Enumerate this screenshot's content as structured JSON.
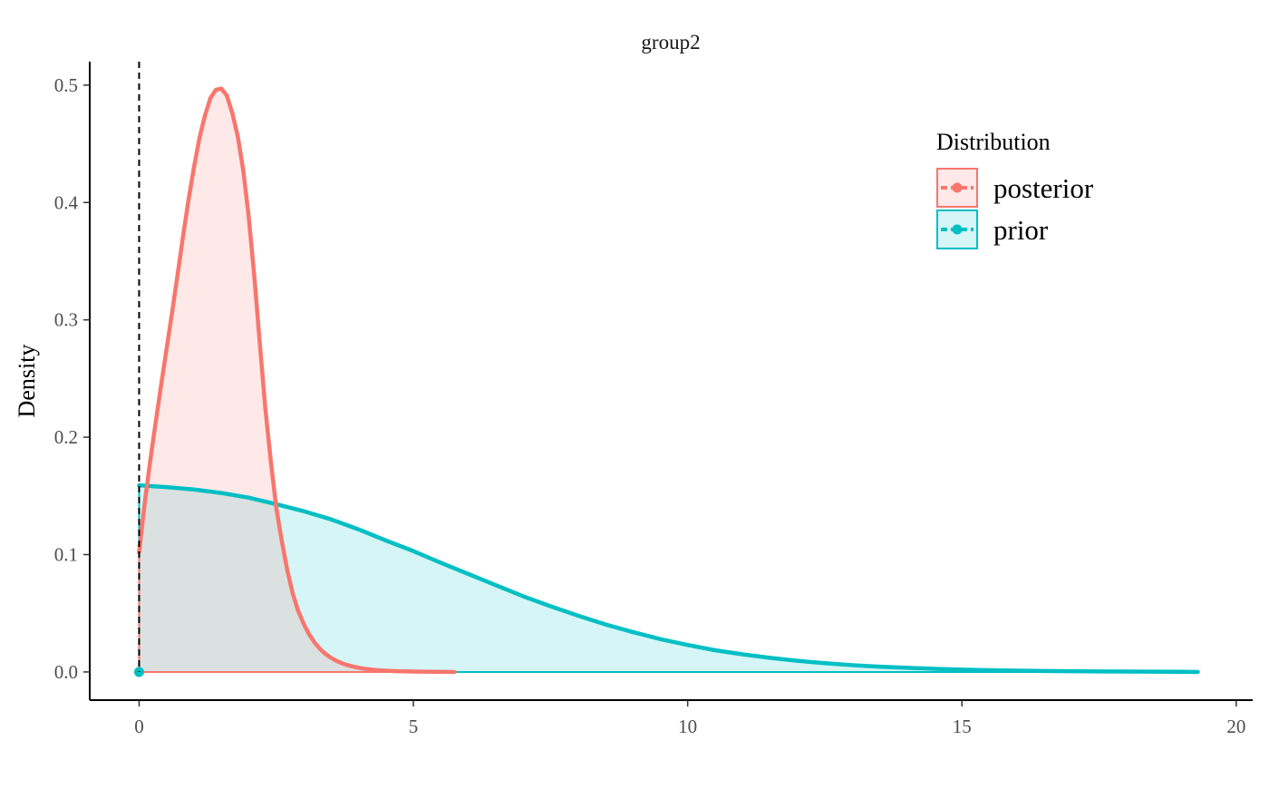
{
  "chart_data": {
    "type": "area",
    "title": "group2",
    "xlabel": "",
    "ylabel": "Density",
    "xlim": [
      -0.9,
      20.3
    ],
    "ylim": [
      -0.024,
      0.52
    ],
    "x_ticks": [
      "0",
      "5",
      "10",
      "15",
      "20"
    ],
    "x_tick_values": [
      0,
      5,
      10,
      15,
      20
    ],
    "y_ticks": [
      "0.0",
      "0.1",
      "0.2",
      "0.3",
      "0.4",
      "0.5"
    ],
    "y_tick_values": [
      0.0,
      0.1,
      0.2,
      0.3,
      0.4,
      0.5
    ],
    "reference_line": {
      "x": 0,
      "style": "dashed",
      "color": "#000000"
    },
    "grid": false,
    "legend": {
      "title": "Distribution",
      "position": "top-right",
      "entries": [
        "posterior",
        "prior"
      ]
    },
    "series": [
      {
        "name": "posterior",
        "color": "#F8766D",
        "fill": "#F8766D",
        "x": [
          0.0,
          0.1,
          0.2,
          0.3,
          0.4,
          0.5,
          0.6,
          0.7,
          0.8,
          0.9,
          1.0,
          1.1,
          1.2,
          1.3,
          1.4,
          1.5,
          1.6,
          1.7,
          1.8,
          1.9,
          2.0,
          2.1,
          2.2,
          2.3,
          2.4,
          2.5,
          2.6,
          2.7,
          2.8,
          2.9,
          3.0,
          3.1,
          3.2,
          3.3,
          3.4,
          3.5,
          3.6,
          3.7,
          3.8,
          3.9,
          4.0,
          4.1,
          4.2,
          4.3,
          4.4,
          4.5,
          4.6,
          4.7,
          4.8,
          4.9,
          5.0,
          5.2,
          5.4,
          5.75
        ],
        "y": [
          0.102,
          0.143,
          0.179,
          0.212,
          0.244,
          0.275,
          0.306,
          0.338,
          0.371,
          0.402,
          0.43,
          0.455,
          0.474,
          0.489,
          0.496,
          0.497,
          0.491,
          0.476,
          0.456,
          0.427,
          0.387,
          0.337,
          0.28,
          0.225,
          0.18,
          0.14,
          0.112,
          0.087,
          0.067,
          0.052,
          0.041,
          0.032,
          0.025,
          0.0195,
          0.0153,
          0.012,
          0.0094,
          0.0074,
          0.0058,
          0.0046,
          0.0036,
          0.0028,
          0.0022,
          0.0017,
          0.0013,
          0.001,
          0.0008,
          0.0006,
          0.0005,
          0.0004,
          0.0003,
          0.0002,
          0.0001,
          0.0
        ]
      },
      {
        "name": "prior",
        "color": "#00BFC4",
        "fill": "#00BFC4",
        "x": [
          0.0,
          0.5,
          1.0,
          1.5,
          2.0,
          2.5,
          3.0,
          3.5,
          4.0,
          4.5,
          5.0,
          5.5,
          6.0,
          6.5,
          7.0,
          7.5,
          8.0,
          8.5,
          9.0,
          9.5,
          10.0,
          10.5,
          11.0,
          11.5,
          12.0,
          12.5,
          13.0,
          13.5,
          14.0,
          14.5,
          15.0,
          15.5,
          16.0,
          16.5,
          17.0,
          17.5,
          18.0,
          18.5,
          19.0,
          19.3
        ],
        "y": [
          0.159,
          0.1575,
          0.1555,
          0.1525,
          0.1485,
          0.143,
          0.137,
          0.13,
          0.1215,
          0.112,
          0.103,
          0.093,
          0.0835,
          0.074,
          0.0645,
          0.056,
          0.048,
          0.0405,
          0.034,
          0.028,
          0.023,
          0.0185,
          0.015,
          0.012,
          0.0095,
          0.0075,
          0.0058,
          0.0045,
          0.0035,
          0.0027,
          0.002,
          0.0015,
          0.0011,
          0.0008,
          0.0006,
          0.0004,
          0.0003,
          0.0002,
          0.0001,
          0.0
        ]
      }
    ]
  }
}
